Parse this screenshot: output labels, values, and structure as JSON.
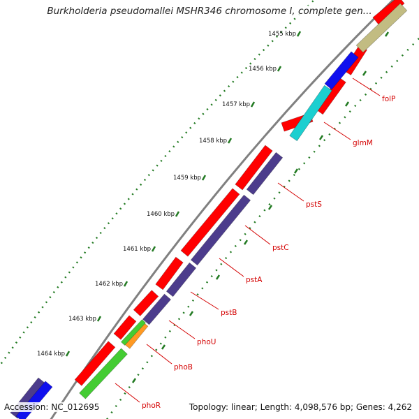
{
  "title": "Burkholderia pseudomallei MSHR346 chromosome I, complete gen...",
  "footer": {
    "accession": "Accession: NC_012695",
    "stats": "Topology: linear; Length: 4,098,576 bp; Genes: 4,262"
  },
  "colors": {
    "red": "#ff0000",
    "purple": "#4c3c8c",
    "cyan": "#1ccfd0",
    "blue": "#1010ee",
    "olive": "#c2bc82",
    "green": "#44cc33",
    "orange": "#ff9922",
    "tick_green": "#227a22",
    "backbone": "#808080",
    "label_red": "#d40000"
  },
  "ticks": [
    {
      "label": "1455 kbp"
    },
    {
      "label": "1456 kbp"
    },
    {
      "label": "1457 kbp"
    },
    {
      "label": "1458 kbp"
    },
    {
      "label": "1459 kbp"
    },
    {
      "label": "1460 kbp"
    },
    {
      "label": "1461 kbp"
    },
    {
      "label": "1462 kbp"
    },
    {
      "label": "1463 kbp"
    },
    {
      "label": "1464 kbp"
    }
  ],
  "genes": [
    {
      "name": "folP"
    },
    {
      "name": "glmM"
    },
    {
      "name": "pstS"
    },
    {
      "name": "pstC"
    },
    {
      "name": "pstA"
    },
    {
      "name": "pstB"
    },
    {
      "name": "phoU"
    },
    {
      "name": "phoB"
    },
    {
      "name": "phoR"
    }
  ]
}
